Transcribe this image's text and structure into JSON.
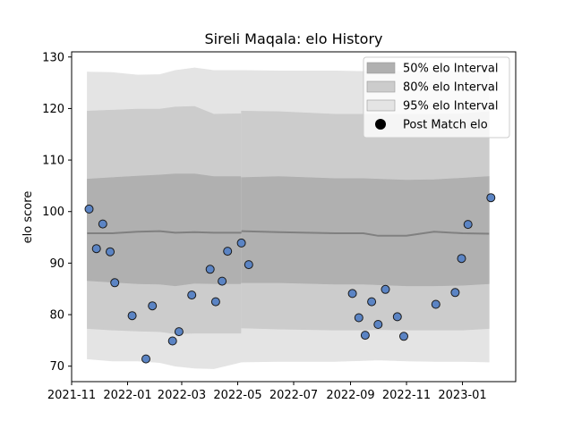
{
  "chart_data": {
    "type": "scatter",
    "title": "Sireli Maqala: elo History",
    "xlabel": "",
    "ylabel": "elo score",
    "x_ticks": [
      "2021-11",
      "2022-01",
      "2022-03",
      "2022-05",
      "2022-07",
      "2022-09",
      "2022-11",
      "2023-01"
    ],
    "y_ticks": [
      70,
      80,
      90,
      100,
      110,
      120,
      130
    ],
    "xlim": [
      "2021-11-01",
      "2023-02-28"
    ],
    "ylim": [
      67,
      131
    ],
    "legend_position": "top-right",
    "grid": false,
    "colors": {
      "band50": "#b0b0b0",
      "band80": "#cccccc",
      "band95": "#e4e4e4",
      "mean_line": "#808080",
      "point_fill": "#5b84c4",
      "point_edge": "#1a1a1a"
    },
    "legend": [
      {
        "label": "50% elo Interval",
        "kind": "band50"
      },
      {
        "label": "80% elo Interval",
        "kind": "band80"
      },
      {
        "label": "95% elo Interval",
        "kind": "band95"
      },
      {
        "label": "Post Match elo",
        "kind": "point"
      }
    ],
    "intervals_before": {
      "x": [
        "2021-11-18",
        "2021-12-15",
        "2022-01-12",
        "2022-02-05",
        "2022-02-22",
        "2022-03-15",
        "2022-04-05",
        "2022-05-05"
      ],
      "mean": [
        95.8,
        95.8,
        96.1,
        96.2,
        95.9,
        96.0,
        95.9,
        95.9
      ],
      "band50": [
        [
          86.6,
          106.3
        ],
        [
          86.3,
          106.6
        ],
        [
          86.0,
          106.9
        ],
        [
          85.9,
          107.1
        ],
        [
          85.6,
          107.3
        ],
        [
          86.1,
          107.3
        ],
        [
          86.0,
          106.8
        ],
        [
          86.0,
          106.8
        ]
      ],
      "band80": [
        [
          77.3,
          119.5
        ],
        [
          77.0,
          119.7
        ],
        [
          76.8,
          119.9
        ],
        [
          76.7,
          119.9
        ],
        [
          76.3,
          120.3
        ],
        [
          76.4,
          120.4
        ],
        [
          76.4,
          118.9
        ],
        [
          76.4,
          119.0
        ]
      ],
      "band95": [
        [
          71.4,
          127.1
        ],
        [
          71.0,
          127.0
        ],
        [
          71.0,
          126.5
        ],
        [
          70.7,
          126.6
        ],
        [
          70.0,
          127.4
        ],
        [
          69.6,
          127.9
        ],
        [
          69.5,
          127.4
        ],
        [
          70.8,
          127.4
        ]
      ]
    },
    "intervals_after": {
      "x": [
        "2022-05-05",
        "2022-06-15",
        "2022-08-15",
        "2022-09-15",
        "2022-10-01",
        "2022-11-01",
        "2022-12-01",
        "2023-01-01",
        "2023-01-30"
      ],
      "mean": [
        96.2,
        96.0,
        95.8,
        95.8,
        95.3,
        95.3,
        96.1,
        95.8,
        95.7
      ],
      "band50": [
        [
          86.2,
          106.6
        ],
        [
          86.2,
          106.8
        ],
        [
          85.9,
          106.4
        ],
        [
          85.9,
          106.4
        ],
        [
          85.8,
          106.3
        ],
        [
          85.6,
          106.1
        ],
        [
          85.6,
          106.2
        ],
        [
          85.7,
          106.5
        ],
        [
          86.0,
          106.8
        ]
      ],
      "band80": [
        [
          77.4,
          119.5
        ],
        [
          77.2,
          119.4
        ],
        [
          77.0,
          118.9
        ],
        [
          77.0,
          118.9
        ],
        [
          77.1,
          118.9
        ],
        [
          77.0,
          118.9
        ],
        [
          77.0,
          118.9
        ],
        [
          77.0,
          119.0
        ],
        [
          77.3,
          119.4
        ]
      ],
      "band95": [
        [
          70.8,
          127.4
        ],
        [
          70.9,
          127.3
        ],
        [
          70.9,
          127.3
        ],
        [
          71.1,
          127.2
        ],
        [
          71.2,
          127.2
        ],
        [
          71.0,
          127.2
        ],
        [
          70.9,
          127.2
        ],
        [
          70.9,
          127.2
        ],
        [
          70.8,
          127.3
        ]
      ]
    },
    "points": [
      {
        "x": "2021-11-20",
        "y": 100.5
      },
      {
        "x": "2021-11-28",
        "y": 92.8
      },
      {
        "x": "2021-12-05",
        "y": 97.6
      },
      {
        "x": "2021-12-13",
        "y": 92.2
      },
      {
        "x": "2021-12-18",
        "y": 86.2
      },
      {
        "x": "2022-01-06",
        "y": 79.8
      },
      {
        "x": "2022-01-21",
        "y": 71.4
      },
      {
        "x": "2022-01-28",
        "y": 81.7
      },
      {
        "x": "2022-02-19",
        "y": 74.9
      },
      {
        "x": "2022-02-26",
        "y": 76.7
      },
      {
        "x": "2022-03-12",
        "y": 83.8
      },
      {
        "x": "2022-04-01",
        "y": 88.8
      },
      {
        "x": "2022-04-07",
        "y": 82.5
      },
      {
        "x": "2022-04-14",
        "y": 86.5
      },
      {
        "x": "2022-04-20",
        "y": 92.3
      },
      {
        "x": "2022-05-05",
        "y": 93.9
      },
      {
        "x": "2022-05-13",
        "y": 89.7
      },
      {
        "x": "2022-09-03",
        "y": 84.1
      },
      {
        "x": "2022-09-10",
        "y": 79.4
      },
      {
        "x": "2022-09-17",
        "y": 76.0
      },
      {
        "x": "2022-09-24",
        "y": 82.5
      },
      {
        "x": "2022-10-01",
        "y": 78.1
      },
      {
        "x": "2022-10-09",
        "y": 84.9
      },
      {
        "x": "2022-10-22",
        "y": 79.6
      },
      {
        "x": "2022-10-29",
        "y": 75.8
      },
      {
        "x": "2022-12-03",
        "y": 82.0
      },
      {
        "x": "2022-12-24",
        "y": 84.3
      },
      {
        "x": "2022-12-31",
        "y": 90.9
      },
      {
        "x": "2023-01-07",
        "y": 97.5
      },
      {
        "x": "2023-02-01",
        "y": 102.7
      }
    ]
  }
}
